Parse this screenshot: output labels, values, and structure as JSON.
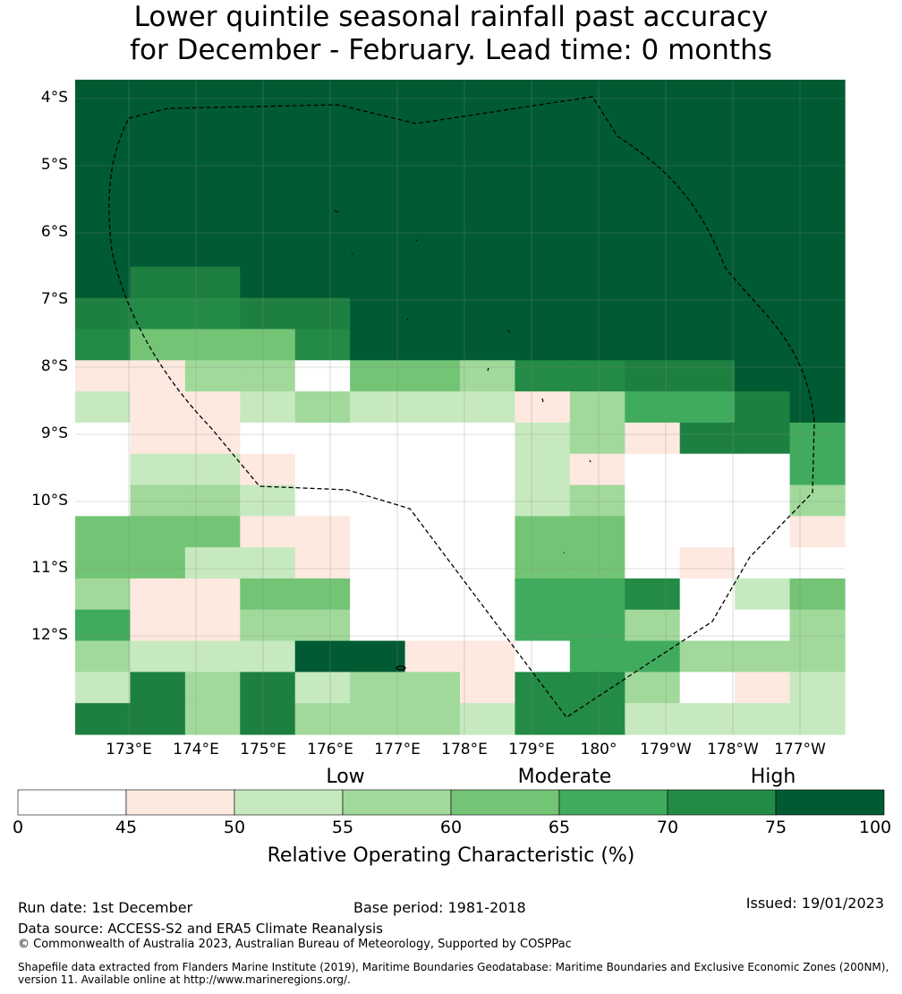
{
  "title_line1": "Lower quintile seasonal rainfall past accuracy",
  "title_line2": "for December - February. Lead time: 0 months",
  "map": {
    "latitude_labels": [
      "4°S",
      "5°S",
      "6°S",
      "7°S",
      "8°S",
      "9°S",
      "10°S",
      "11°S",
      "12°S"
    ],
    "longitude_labels": [
      "173°E",
      "174°E",
      "175°E",
      "176°E",
      "177°E",
      "178°E",
      "179°E",
      "180°",
      "179°W",
      "178°W",
      "177°W"
    ],
    "grid_rows": [
      "88888888888888",
      "88888888888888",
      "88888888888888",
      "88888888888888",
      "88888888888888",
      "88888888888888",
      "87788888888888",
      "76677888888888",
      "64446888888888",
      "11330443667788",
      "21123222135578",
      "01100000231775",
      "02210000210005",
      "03320000230003",
      "44411000440001",
      "44221000440100",
      "31144000556024",
      "51133000553003",
      "32228811055333",
      "27372331663012",
      "77373332662222"
    ],
    "cell_colors": [
      "#ffffff",
      "#fde9e0",
      "#c7e9c0",
      "#a1d99b",
      "#74c476",
      "#41ab5d",
      "#238b45",
      "#1e8040",
      "#005a32"
    ]
  },
  "colorbar": {
    "category_labels": [
      "Low",
      "Moderate",
      "High"
    ],
    "ticks": [
      "0",
      "45",
      "50",
      "55",
      "60",
      "65",
      "70",
      "75",
      "100"
    ],
    "colors": [
      "#ffffff",
      "#fde9e0",
      "#c7e9c0",
      "#a1d99b",
      "#74c476",
      "#41ab5d",
      "#238b45",
      "#005a32"
    ],
    "label": "Relative Operating Characteristic (%)"
  },
  "footer": {
    "run_date": "Run date: 1st December",
    "base_period": "Base period: 1981-2018",
    "issued": "Issued: 19/01/2023",
    "data_source": "Data source: ACCESS-S2 and ERA5 Climate Reanalysis",
    "copyright": "© Commonwealth of Australia 2023, Australian Bureau of Meteorology, Supported by COSPPac",
    "shapefile": "Shapefile data extracted from Flanders Marine Institute (2019), Maritime Boundaries Geodatabase: Maritime Boundaries and Exclusive Economic Zones (200NM), version 11. Available online at http://www.marineregions.org/."
  }
}
